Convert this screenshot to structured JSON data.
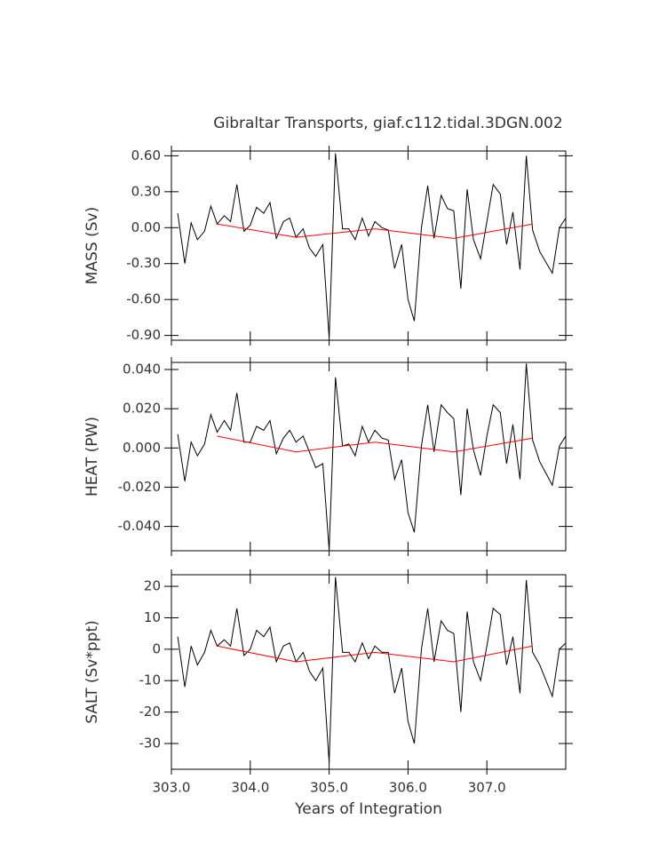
{
  "chart_data": [
    {
      "type": "line",
      "title": "Gibraltar Transports, giaf.c112.tidal.3DGN.002",
      "ylabel": "MASS (Sv)",
      "xlim": [
        303,
        308
      ],
      "xticks": [
        {
          "value": 303,
          "label": "303.0"
        },
        {
          "value": 304,
          "label": "304.0"
        },
        {
          "value": 305,
          "label": "305.0"
        },
        {
          "value": 306,
          "label": "306.0"
        },
        {
          "value": 307,
          "label": "307.0"
        }
      ],
      "ylim": [
        0.64,
        -0.94
      ],
      "yticks": [
        {
          "value": 0.6,
          "label": "0.60"
        },
        {
          "value": 0.3,
          "label": "0.30"
        },
        {
          "value": 0,
          "label": "0.00"
        },
        {
          "value": -0.3,
          "label": "-0.30"
        },
        {
          "value": -0.6,
          "label": "-0.60"
        },
        {
          "value": -0.9,
          "label": "-0.90"
        }
      ],
      "series": [
        {
          "color": "#000000",
          "x": [
            303.08,
            303.17,
            303.25,
            303.33,
            303.42,
            303.5,
            303.58,
            303.67,
            303.75,
            303.83,
            303.92,
            304.0,
            304.08,
            304.17,
            304.25,
            304.33,
            304.42,
            304.5,
            304.58,
            304.67,
            304.75,
            304.83,
            304.92,
            305.0,
            305.08,
            305.17,
            305.25,
            305.33,
            305.42,
            305.5,
            305.58,
            305.67,
            305.75,
            305.83,
            305.92,
            306.0,
            306.08,
            306.17,
            306.25,
            306.33,
            306.42,
            306.5,
            306.58,
            306.67,
            306.75,
            306.83,
            306.92,
            307.0,
            307.08,
            307.17,
            307.25,
            307.33,
            307.42,
            307.5,
            307.58,
            307.67,
            307.75,
            307.83,
            307.92,
            308.0
          ],
          "values": [
            0.12,
            -0.3,
            0.04,
            -0.1,
            -0.03,
            0.18,
            0.03,
            0.1,
            0.05,
            0.36,
            -0.03,
            0.02,
            0.17,
            0.12,
            0.21,
            -0.09,
            0.05,
            0.08,
            -0.08,
            -0.01,
            -0.17,
            -0.24,
            -0.14,
            -0.92,
            0.62,
            -0.01,
            -0.01,
            -0.1,
            0.08,
            -0.07,
            0.05,
            0.0,
            -0.02,
            -0.34,
            -0.14,
            -0.6,
            -0.78,
            0.0,
            0.35,
            -0.09,
            0.27,
            0.16,
            0.14,
            -0.51,
            0.32,
            -0.1,
            -0.26,
            0.05,
            0.36,
            0.28,
            -0.14,
            0.13,
            -0.35,
            0.6,
            -0.02,
            -0.2,
            -0.29,
            -0.38,
            0.0,
            0.08
          ]
        },
        {
          "color": "#ff0000",
          "x": [
            303.58,
            304.58,
            305.58,
            306.58,
            307.58
          ],
          "values": [
            0.03,
            -0.08,
            -0.01,
            -0.09,
            0.03
          ]
        }
      ]
    },
    {
      "type": "line",
      "ylabel": "HEAT (PW)",
      "xlim": [
        303,
        308
      ],
      "xticks": [
        {
          "value": 303,
          "label": "303.0"
        },
        {
          "value": 304,
          "label": "304.0"
        },
        {
          "value": 305,
          "label": "305.0"
        },
        {
          "value": 306,
          "label": "306.0"
        },
        {
          "value": 307,
          "label": "307.0"
        }
      ],
      "ylim": [
        0.0436,
        -0.0524
      ],
      "yticks": [
        {
          "value": 0.04,
          "label": "0.040"
        },
        {
          "value": 0.02,
          "label": "0.020"
        },
        {
          "value": 0,
          "label": "0.000"
        },
        {
          "value": -0.02,
          "label": "-0.020"
        },
        {
          "value": -0.04,
          "label": "-0.040"
        }
      ],
      "series": [
        {
          "color": "#000000",
          "x": [
            303.08,
            303.17,
            303.25,
            303.33,
            303.42,
            303.5,
            303.58,
            303.67,
            303.75,
            303.83,
            303.92,
            304.0,
            304.08,
            304.17,
            304.25,
            304.33,
            304.42,
            304.5,
            304.58,
            304.67,
            304.75,
            304.83,
            304.92,
            305.0,
            305.08,
            305.17,
            305.25,
            305.33,
            305.42,
            305.5,
            305.58,
            305.67,
            305.75,
            305.83,
            305.92,
            306.0,
            306.08,
            306.17,
            306.25,
            306.33,
            306.42,
            306.5,
            306.58,
            306.67,
            306.75,
            306.83,
            306.92,
            307.0,
            307.08,
            307.17,
            307.25,
            307.33,
            307.42,
            307.5,
            307.58,
            307.67,
            307.75,
            307.83,
            307.92,
            308.0
          ],
          "values": [
            0.007,
            -0.017,
            0.003,
            -0.004,
            0.002,
            0.017,
            0.008,
            0.014,
            0.009,
            0.028,
            0.003,
            0.003,
            0.011,
            0.009,
            0.014,
            -0.003,
            0.005,
            0.009,
            0.003,
            0.006,
            -0.002,
            -0.01,
            -0.008,
            -0.052,
            0.036,
            0.001,
            0.002,
            -0.004,
            0.011,
            0.003,
            0.009,
            0.005,
            0.004,
            -0.016,
            -0.006,
            -0.033,
            -0.043,
            0.001,
            0.022,
            -0.002,
            0.022,
            0.018,
            0.015,
            -0.024,
            0.02,
            -0.001,
            -0.014,
            0.006,
            0.022,
            0.018,
            -0.008,
            0.012,
            -0.016,
            0.043,
            0.004,
            -0.007,
            -0.013,
            -0.019,
            0.001,
            0.006
          ]
        },
        {
          "color": "#ff0000",
          "x": [
            303.58,
            304.58,
            305.58,
            306.58,
            307.58
          ],
          "values": [
            0.006,
            -0.002,
            0.003,
            -0.002,
            0.005
          ]
        }
      ]
    },
    {
      "type": "line",
      "ylabel": "SALT (Sv*ppt)",
      "xlabel": "Years of Integration",
      "xlim": [
        303,
        308
      ],
      "xticks": [
        {
          "value": 303,
          "label": "303.0"
        },
        {
          "value": 304,
          "label": "304.0"
        },
        {
          "value": 305,
          "label": "305.0"
        },
        {
          "value": 306,
          "label": "306.0"
        },
        {
          "value": 307,
          "label": "307.0"
        }
      ],
      "ylim": [
        23.7,
        -38.2
      ],
      "yticks": [
        20,
        10,
        0,
        -10,
        -20,
        -30
      ],
      "series": [
        {
          "color": "#000000",
          "x": [
            303.08,
            303.17,
            303.25,
            303.33,
            303.42,
            303.5,
            303.58,
            303.67,
            303.75,
            303.83,
            303.92,
            304.0,
            304.08,
            304.17,
            304.25,
            304.33,
            304.42,
            304.5,
            304.58,
            304.67,
            304.75,
            304.83,
            304.92,
            305.0,
            305.08,
            305.17,
            305.25,
            305.33,
            305.42,
            305.5,
            305.58,
            305.67,
            305.75,
            305.83,
            305.92,
            306.0,
            306.08,
            306.17,
            306.25,
            306.33,
            306.42,
            306.5,
            306.58,
            306.67,
            306.75,
            306.83,
            306.92,
            307.0,
            307.08,
            307.17,
            307.25,
            307.33,
            307.42,
            307.5,
            307.58,
            307.67,
            307.75,
            307.83,
            307.92,
            308.0
          ],
          "values": [
            4,
            -12,
            1,
            -5,
            -1,
            6,
            1,
            3,
            1,
            13,
            -2,
            0,
            6,
            4,
            7,
            -4,
            1,
            2,
            -4,
            -1,
            -7,
            -10,
            -6,
            -36,
            23,
            -1,
            -1,
            -4,
            2,
            -3,
            1,
            -1,
            -1,
            -14,
            -6,
            -23,
            -30,
            0,
            13,
            -4,
            9,
            6,
            5,
            -20,
            12,
            -4,
            -10,
            1,
            13,
            11,
            -5,
            4,
            -14,
            22,
            -1,
            -5,
            -10,
            -15,
            0,
            2
          ]
        },
        {
          "color": "#ff0000",
          "x": [
            303.58,
            304.58,
            305.58,
            306.58,
            307.58
          ],
          "values": [
            1,
            -4,
            -1,
            -4,
            1
          ]
        }
      ]
    }
  ]
}
